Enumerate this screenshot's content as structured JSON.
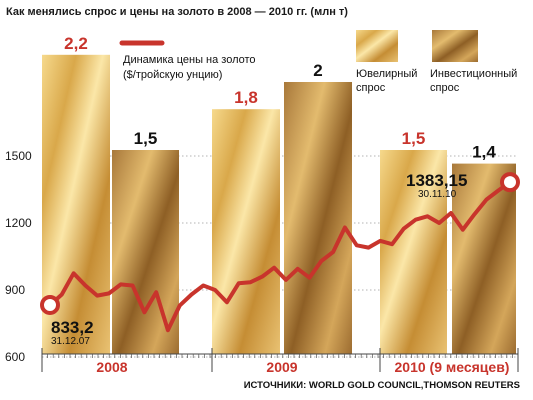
{
  "chart_data": {
    "type": "bar+line",
    "title": "Как менялись спрос и цены на золото в 2008 — 2010 гг. (млн т)",
    "source": "ИСТОЧНИКИ: WORLD GOLD COUNCIL,THOMSON REUTERS",
    "categories": [
      "2008",
      "2009",
      "2010 (9 месяцев)"
    ],
    "bars": {
      "series": [
        {
          "name": "Ювелирный спрос",
          "values": [
            2.2,
            1.8,
            1.5
          ],
          "labels": [
            "2,2",
            "1,8",
            "1,5"
          ]
        },
        {
          "name": "Инвестиционный спрос",
          "values": [
            1.5,
            2,
            1.4
          ],
          "labels": [
            "1,5",
            "2",
            "1,4"
          ]
        }
      ]
    },
    "line": {
      "name": "Динамика цены на золото ($/тройскую унцию)",
      "y_ticks": [
        600,
        900,
        1200,
        1500
      ],
      "ylim": [
        600,
        1700
      ],
      "values": [
        833,
        880,
        975,
        920,
        875,
        885,
        925,
        920,
        800,
        890,
        720,
        830,
        880,
        920,
        900,
        845,
        930,
        935,
        960,
        1000,
        945,
        995,
        955,
        1030,
        1070,
        1180,
        1100,
        1090,
        1120,
        1105,
        1175,
        1215,
        1230,
        1200,
        1245,
        1170,
        1240,
        1305,
        1345,
        1383
      ],
      "annotations": [
        {
          "value": "833,2",
          "date": "31.12.07",
          "point": "start"
        },
        {
          "value": "1383,15",
          "date": "30.11.10",
          "point": "end"
        }
      ]
    },
    "colors": {
      "line": "#c8342c",
      "year_labels": "#c8342c",
      "jewelry_label": "#c8342c",
      "investment_label": "#111111"
    }
  }
}
